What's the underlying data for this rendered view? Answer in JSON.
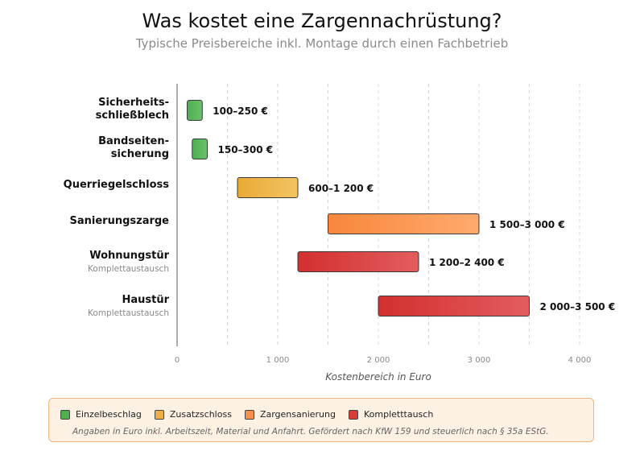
{
  "chart_data": {
    "type": "bar",
    "orientation": "horizontal-range",
    "title": "Was kostet eine Zargennachrüstung?",
    "subtitle": "Typische Preisbereiche inkl. Montage durch einen Fachbetrieb",
    "xlabel": "Kostenbereich in Euro",
    "xlim": [
      0,
      4000
    ],
    "xticks": [
      0,
      1000,
      2000,
      3000,
      4000
    ],
    "xtick_labels": [
      "0",
      "1 000",
      "2 000",
      "3 000",
      "4 000"
    ],
    "grid": "vertical dashed every 500",
    "categories": [
      {
        "label_lines": [
          "Sicherheits-",
          "schließblech"
        ],
        "sublabel": "",
        "min": 100,
        "max": 250,
        "value_label": "100–250 €",
        "group": "Einzelbeschlag"
      },
      {
        "label_lines": [
          "Bandseiten-",
          "sicherung"
        ],
        "sublabel": "",
        "min": 150,
        "max": 300,
        "value_label": "150–300 €",
        "group": "Einzelbeschlag"
      },
      {
        "label_lines": [
          "Querriegelschloss"
        ],
        "sublabel": "",
        "min": 600,
        "max": 1200,
        "value_label": "600–1 200 €",
        "group": "Zusatzschloss"
      },
      {
        "label_lines": [
          "Sanierungszarge"
        ],
        "sublabel": "",
        "min": 1500,
        "max": 3000,
        "value_label": "1 500–3 000 €",
        "group": "Zargensanierung"
      },
      {
        "label_lines": [
          "Wohnungstür"
        ],
        "sublabel": "Komplettaustausch",
        "min": 1200,
        "max": 2400,
        "value_label": "1 200–2 400 €",
        "group": "Komplettausch"
      },
      {
        "label_lines": [
          "Haustür"
        ],
        "sublabel": "Komplettaustausch",
        "min": 2000,
        "max": 3500,
        "value_label": "2 000–3 500 €",
        "group": "Komplettausch"
      }
    ],
    "legend": {
      "placement": "bottom",
      "items": [
        {
          "name": "Einzelbeschlag",
          "color": "#4fae4f"
        },
        {
          "name": "Zusatzschloss",
          "color": "#ebb040"
        },
        {
          "name": "Zargensanierung",
          "color": "#f7904a"
        },
        {
          "name": "Kompletttausch",
          "color": "#d93a3a"
        }
      ],
      "note": "Angaben in Euro inkl. Arbeitszeit, Material und Anfahrt. Gefördert nach KfW 159 und steuerlich nach § 35a EStG."
    },
    "group_colors": {
      "Einzelbeschlag": [
        "#4caf50",
        "#6cc06c"
      ],
      "Zusatzschloss": [
        "#e8aa35",
        "#f3c462"
      ],
      "Zargensanierung": [
        "#f7873c",
        "#ffaa6e"
      ],
      "Komplettausch": [
        "#d32f2f",
        "#e35d5d"
      ]
    }
  }
}
